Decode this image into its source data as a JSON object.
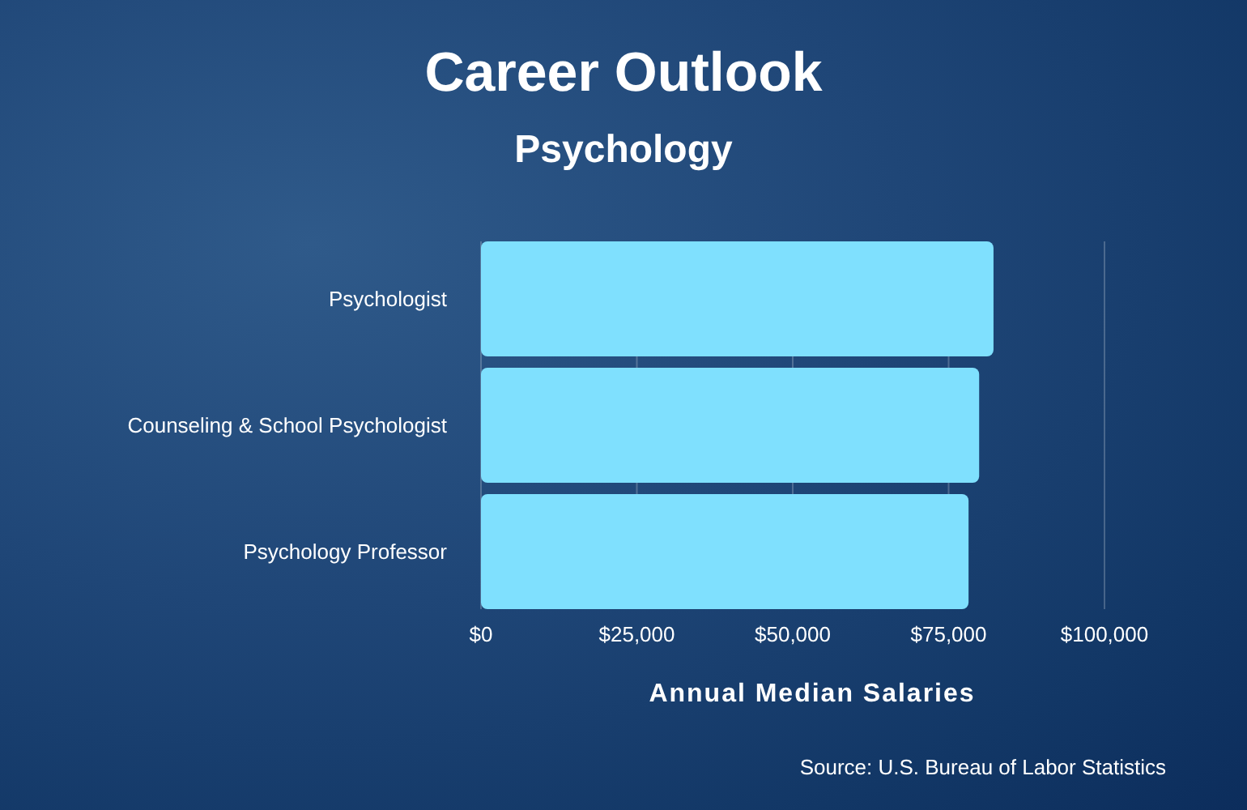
{
  "chart_data": {
    "type": "bar",
    "orientation": "horizontal",
    "title": "Career Outlook",
    "subtitle": "Psychology",
    "categories": [
      "Psychologist",
      "Counseling & School Psychologist",
      "Psychology Professor"
    ],
    "values": [
      82200,
      79900,
      78200
    ],
    "color": "#7fe0fe",
    "xlim": [
      0,
      100000
    ],
    "xticks": [
      {
        "value": 0,
        "label": "$0"
      },
      {
        "value": 25000,
        "label": "$25,000"
      },
      {
        "value": 50000,
        "label": "$50,000"
      },
      {
        "value": 75000,
        "label": "$75,000"
      },
      {
        "value": 100000,
        "label": "$100,000"
      }
    ],
    "xlabel": "Annual Median Salaries",
    "grid": "x",
    "annotations": [
      "Source: U.S. Bureau of Labor Statistics"
    ]
  }
}
